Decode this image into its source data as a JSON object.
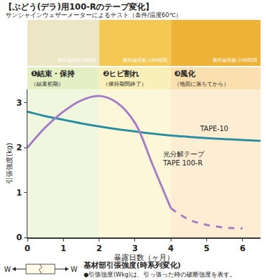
{
  "header": {
    "title": "【ぶどう(デラ)用100-Rのテープ変化】",
    "subtitle": "サンシャインウェザーメーターによるテスト（条件/温度60℃）"
  },
  "photos": [
    {
      "label": "紫外線照射:0時間",
      "color": "#ece6c4"
    },
    {
      "label": "紫外線照射:160時間",
      "color": "#f3c954"
    },
    {
      "label": "紫外線照射:240時間",
      "color": "#eeb236"
    }
  ],
  "phases": [
    {
      "label": "❶結束・保持",
      "sublabel": "（結束初期）",
      "from": 0,
      "to": 2,
      "color": "#e4f0c4"
    },
    {
      "label": "❷ヒビ割れ",
      "sublabel": "（保持期間終了）",
      "from": 2,
      "to": 4,
      "color": "#f8f0b8"
    },
    {
      "label": "❸風化",
      "sublabel": "（地面に落ちてから）",
      "from": 4,
      "to": 6.5,
      "color": "#fbdfae"
    }
  ],
  "chart_data": {
    "type": "line",
    "x_label": "暴露日数（ヶ月）",
    "y_label": "引張強度(kg)",
    "x": [
      0,
      0.5,
      1,
      1.5,
      2,
      2.5,
      3,
      3.5,
      4,
      4.5,
      5,
      5.5,
      6,
      6.5
    ],
    "xlim": [
      0,
      6.5
    ],
    "xticks": [
      0,
      1,
      2,
      3,
      4,
      5,
      6
    ],
    "ylim": [
      0,
      3.3
    ],
    "yticks": [
      0,
      1,
      2,
      3
    ],
    "grid": false,
    "series": [
      {
        "name": "TAPE-10",
        "color": "#2a8ca0",
        "line_style": "solid",
        "values": [
          2.8,
          2.7,
          2.62,
          2.54,
          2.47,
          2.41,
          2.36,
          2.31,
          2.27,
          2.24,
          2.21,
          2.19,
          2.17,
          2.15
        ]
      },
      {
        "name": "光分解テープ TAPE 100-R",
        "color": "#a57cc8",
        "line_style": "solid",
        "values": [
          2.0,
          2.45,
          2.8,
          3.05,
          3.15,
          3.0,
          2.55,
          1.6,
          0.65,
          null,
          null,
          null,
          null,
          null
        ]
      },
      {
        "name": "光分解テープ TAPE 100-R",
        "color": "#a57cc8",
        "line_style": "dashed",
        "values": [
          null,
          null,
          null,
          null,
          null,
          null,
          null,
          null,
          0.65,
          0.4,
          0.28,
          0.22,
          0.2,
          null
        ]
      }
    ]
  },
  "footer": {
    "left": "W",
    "right": "W",
    "title": "基材部引張強度(時系列変化)",
    "note": "●引張強度(Wkg)は、引っ張った時の破断強度を表す。"
  }
}
